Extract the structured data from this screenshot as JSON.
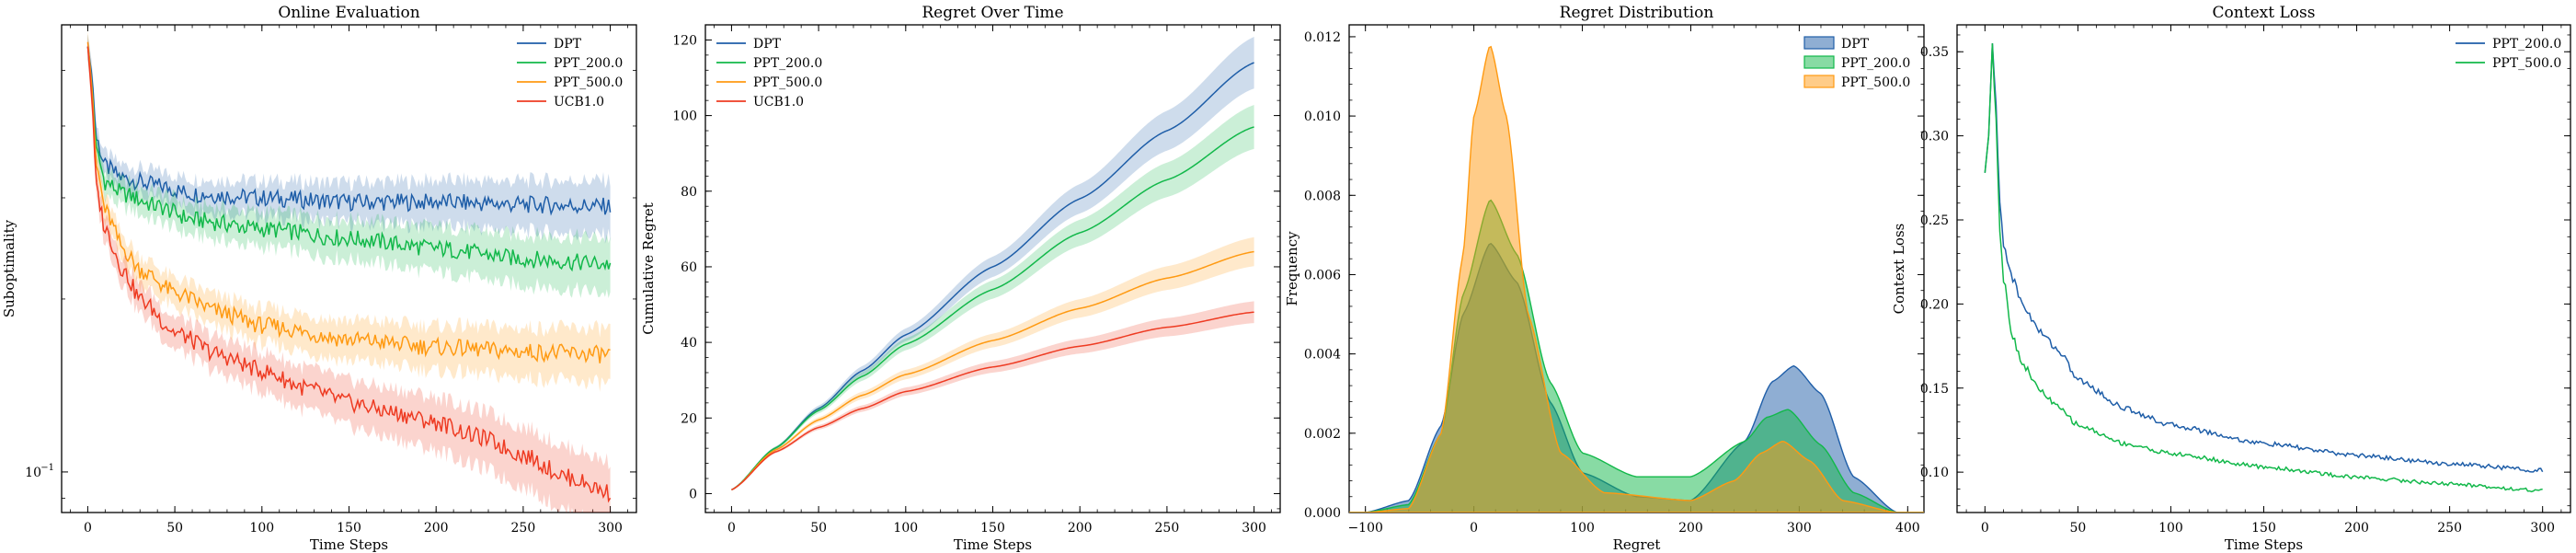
{
  "figure": {
    "colors": {
      "DPT": "#1f5ea8",
      "PPT_200.0": "#12b84a",
      "PPT_500.0": "#ff9a12",
      "UCB1.0": "#ee3b22"
    }
  },
  "chart_data": [
    {
      "type": "line",
      "title": "Online Evaluation",
      "xlabel": "Time Steps",
      "ylabel": "Suboptimality",
      "yscale": "log",
      "xlim": [
        -15,
        315
      ],
      "ylim": [
        0.085,
        0.6
      ],
      "xticks": [
        0,
        50,
        100,
        150,
        200,
        250,
        300
      ],
      "yticks": [
        {
          "value": 0.1,
          "label": "10"
        }
      ],
      "ytick_exponent": "−1",
      "legend": "top-right",
      "shaded_band": true,
      "series": [
        {
          "name": "DPT",
          "color": "#1f5ea8",
          "x": [
            0,
            2,
            5,
            10,
            20,
            40,
            60,
            100,
            150,
            200,
            250,
            300
          ],
          "y": [
            0.55,
            0.5,
            0.38,
            0.34,
            0.325,
            0.315,
            0.305,
            0.3,
            0.295,
            0.295,
            0.292,
            0.29
          ]
        },
        {
          "name": "PPT_200.0",
          "color": "#12b84a",
          "x": [
            0,
            2,
            5,
            10,
            20,
            40,
            60,
            100,
            150,
            200,
            250,
            300
          ],
          "y": [
            0.55,
            0.48,
            0.36,
            0.32,
            0.305,
            0.29,
            0.275,
            0.265,
            0.255,
            0.245,
            0.235,
            0.23
          ]
        },
        {
          "name": "PPT_500.0",
          "color": "#ff9a12",
          "x": [
            0,
            2,
            5,
            10,
            20,
            30,
            50,
            75,
            100,
            150,
            200,
            250,
            300
          ],
          "y": [
            0.56,
            0.48,
            0.34,
            0.285,
            0.245,
            0.225,
            0.205,
            0.19,
            0.18,
            0.17,
            0.165,
            0.162,
            0.16
          ]
        },
        {
          "name": "UCB1.0",
          "color": "#ee3b22",
          "x": [
            0,
            2,
            5,
            10,
            20,
            30,
            50,
            75,
            100,
            125,
            150,
            175,
            200,
            225,
            250,
            275,
            300
          ],
          "y": [
            0.55,
            0.46,
            0.31,
            0.265,
            0.225,
            0.2,
            0.175,
            0.16,
            0.15,
            0.14,
            0.132,
            0.127,
            0.122,
            0.115,
            0.107,
            0.098,
            0.092
          ]
        }
      ]
    },
    {
      "type": "line",
      "title": "Regret Over Time",
      "xlabel": "Time Steps",
      "ylabel": "Cumulative Regret",
      "xlim": [
        -15,
        315
      ],
      "ylim": [
        -5,
        124
      ],
      "xticks": [
        0,
        50,
        100,
        150,
        200,
        250,
        300
      ],
      "yticks": [
        0,
        20,
        40,
        60,
        80,
        100,
        120
      ],
      "legend": "top-left",
      "shaded_band": true,
      "series": [
        {
          "name": "DPT",
          "color": "#1f5ea8",
          "x": [
            0,
            25,
            50,
            75,
            100,
            150,
            200,
            250,
            300
          ],
          "y": [
            1,
            12,
            22.5,
            32.5,
            42,
            60,
            78,
            96,
            114
          ]
        },
        {
          "name": "PPT_200.0",
          "color": "#12b84a",
          "x": [
            0,
            25,
            50,
            75,
            100,
            150,
            200,
            250,
            300
          ],
          "y": [
            1,
            12,
            22,
            31,
            39.5,
            54,
            69,
            83,
            97
          ]
        },
        {
          "name": "PPT_500.0",
          "color": "#ff9a12",
          "x": [
            0,
            25,
            50,
            75,
            100,
            150,
            200,
            250,
            300
          ],
          "y": [
            1,
            11.5,
            19.5,
            26,
            31.5,
            40.5,
            49,
            57,
            64
          ]
        },
        {
          "name": "UCB1.0",
          "color": "#ee3b22",
          "x": [
            0,
            25,
            50,
            75,
            100,
            150,
            200,
            250,
            300
          ],
          "y": [
            1,
            11,
            17.5,
            22.5,
            27,
            33.5,
            39,
            44,
            48
          ]
        }
      ]
    },
    {
      "type": "area",
      "title": "Regret Distribution",
      "xlabel": "Regret",
      "ylabel": "Frequency",
      "xlim": [
        -115,
        415
      ],
      "ylim": [
        0,
        0.0123
      ],
      "xticks": [
        -100,
        0,
        100,
        200,
        300,
        400
      ],
      "yticks": [
        {
          "value": 0,
          "label": "0.000"
        },
        {
          "value": 0.002,
          "label": "0.002"
        },
        {
          "value": 0.004,
          "label": "0.004"
        },
        {
          "value": 0.006,
          "label": "0.006"
        },
        {
          "value": 0.008,
          "label": "0.008"
        },
        {
          "value": 0.01,
          "label": "0.010"
        },
        {
          "value": 0.012,
          "label": "0.012"
        }
      ],
      "legend": "top-right",
      "series": [
        {
          "name": "DPT",
          "color": "#1f5ea8",
          "x": [
            -100,
            -60,
            -30,
            -10,
            15,
            40,
            70,
            100,
            150,
            200,
            250,
            275,
            295,
            320,
            350,
            390
          ],
          "y": [
            0,
            0.0003,
            0.0022,
            0.005,
            0.0068,
            0.0058,
            0.0028,
            0.001,
            0.0004,
            0.0003,
            0.0018,
            0.0033,
            0.0037,
            0.003,
            0.0009,
            0
          ]
        },
        {
          "name": "PPT_200.0",
          "color": "#12b84a",
          "x": [
            -100,
            -60,
            -30,
            -10,
            15,
            40,
            70,
            100,
            150,
            200,
            250,
            270,
            290,
            320,
            350,
            390
          ],
          "y": [
            0,
            0.0002,
            0.002,
            0.0055,
            0.0079,
            0.0065,
            0.0033,
            0.0015,
            0.0009,
            0.0009,
            0.0018,
            0.0024,
            0.0026,
            0.0017,
            0.0005,
            0
          ]
        },
        {
          "name": "PPT_500.0",
          "color": "#ff9a12",
          "x": [
            -100,
            -60,
            -30,
            -10,
            0,
            15,
            30,
            50,
            80,
            120,
            200,
            240,
            265,
            285,
            310,
            340,
            390
          ],
          "y": [
            0,
            0.0001,
            0.002,
            0.0065,
            0.01,
            0.0118,
            0.01,
            0.005,
            0.0015,
            0.0005,
            0.0003,
            0.0008,
            0.0015,
            0.0018,
            0.0013,
            0.0003,
            0
          ]
        }
      ]
    },
    {
      "type": "line",
      "title": "Context Loss",
      "xlabel": "Time Steps",
      "ylabel": "Context Loss",
      "xlim": [
        -15,
        315
      ],
      "ylim": [
        0.076,
        0.366
      ],
      "xticks": [
        0,
        50,
        100,
        150,
        200,
        250,
        300
      ],
      "yticks": [
        {
          "value": 0.1,
          "label": "0.10"
        },
        {
          "value": 0.15,
          "label": "0.15"
        },
        {
          "value": 0.2,
          "label": "0.20"
        },
        {
          "value": 0.25,
          "label": "0.25"
        },
        {
          "value": 0.3,
          "label": "0.30"
        },
        {
          "value": 0.35,
          "label": "0.35"
        }
      ],
      "legend": "top-right",
      "series": [
        {
          "name": "PPT_200.0",
          "color": "#1f5ea8",
          "x": [
            0,
            2,
            4,
            6,
            8,
            10,
            15,
            20,
            30,
            40,
            50,
            75,
            100,
            150,
            200,
            250,
            300
          ],
          "y": [
            0.278,
            0.3,
            0.355,
            0.315,
            0.26,
            0.235,
            0.215,
            0.2,
            0.183,
            0.172,
            0.155,
            0.138,
            0.128,
            0.117,
            0.11,
            0.105,
            0.101
          ]
        },
        {
          "name": "PPT_500.0",
          "color": "#12b84a",
          "x": [
            0,
            2,
            4,
            6,
            8,
            10,
            15,
            20,
            30,
            40,
            50,
            75,
            100,
            150,
            200,
            250,
            300
          ],
          "y": [
            0.278,
            0.3,
            0.355,
            0.31,
            0.245,
            0.215,
            0.18,
            0.165,
            0.148,
            0.138,
            0.128,
            0.117,
            0.111,
            0.103,
            0.097,
            0.093,
            0.089
          ]
        }
      ]
    }
  ]
}
